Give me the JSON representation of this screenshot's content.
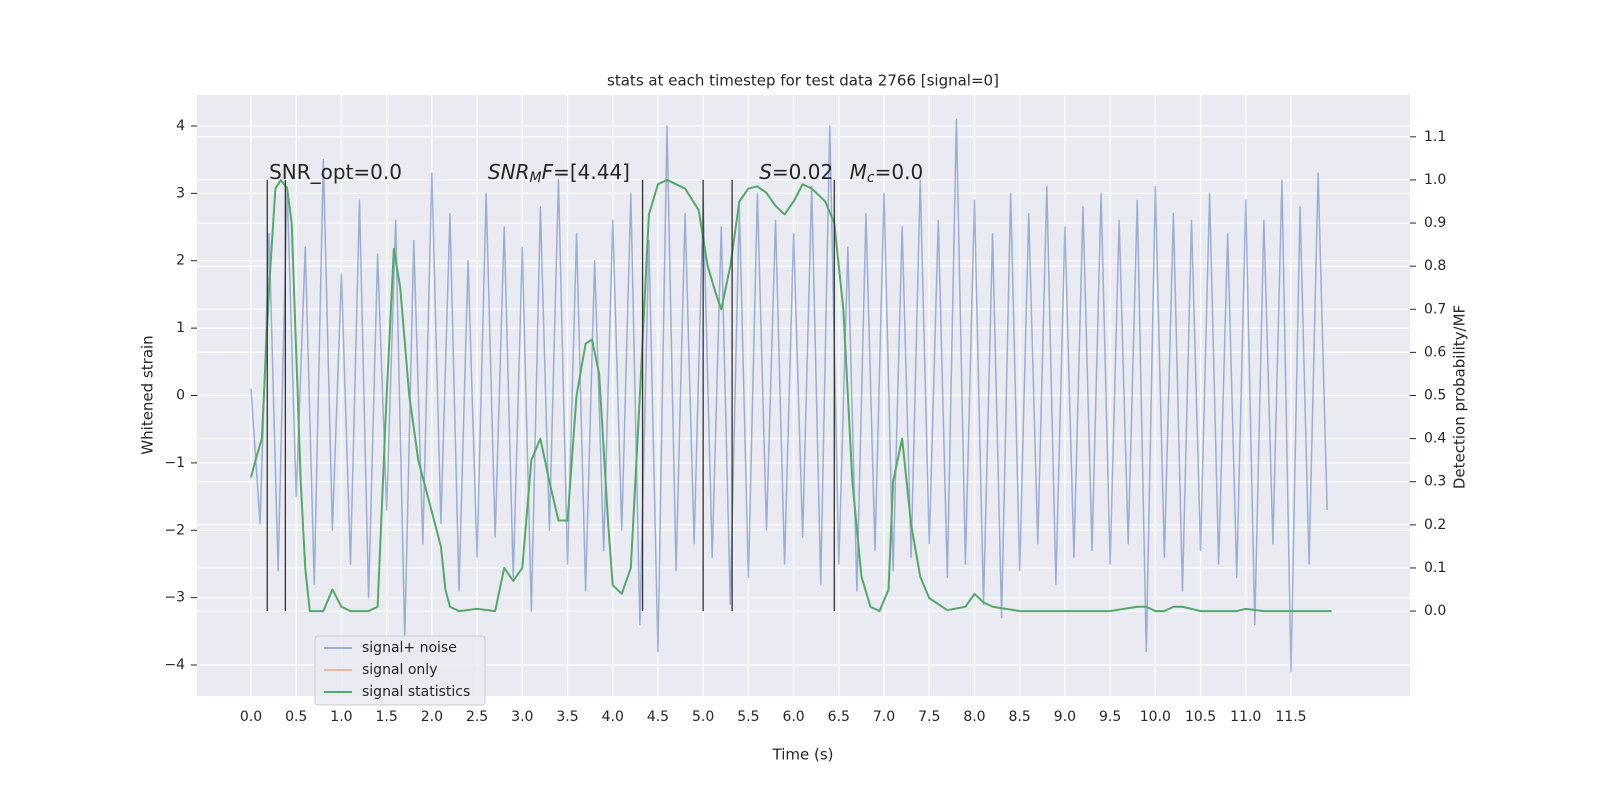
{
  "chart_data": {
    "type": "line",
    "title": "stats at each timestep for test data 2766 [signal=0]",
    "xlabel": "Time (s)",
    "ylabel": "Whitened strain",
    "y2label": "Detection probability/MF",
    "xlim": [
      -0.597,
      12.816
    ],
    "ylim": [
      -4.46,
      4.46
    ],
    "y2lim": [
      -0.197,
      1.197
    ],
    "grid": true,
    "legend": "lower left",
    "xticks": [
      {
        "value": 0,
        "label": "0.0"
      },
      0.5,
      {
        "value": 1,
        "label": "1.0"
      },
      1.5,
      {
        "value": 2,
        "label": "2.0"
      },
      2.5,
      {
        "value": 3,
        "label": "3.0"
      },
      3.5,
      {
        "value": 4,
        "label": "4.0"
      },
      4.5,
      {
        "value": 5,
        "label": "5.0"
      },
      5.5,
      {
        "value": 6,
        "label": "6.0"
      },
      6.5,
      {
        "value": 7,
        "label": "7.0"
      },
      7.5,
      {
        "value": 8,
        "label": "8.0"
      },
      8.5,
      {
        "value": 9,
        "label": "9.0"
      },
      9.5,
      {
        "value": 10,
        "label": "10.0"
      },
      10.5,
      {
        "value": 11,
        "label": "11.0"
      },
      11.5
    ],
    "yticks": [
      {
        "value": -4,
        "label": "−4"
      },
      {
        "value": -3,
        "label": "−3"
      },
      {
        "value": -2,
        "label": "−2"
      },
      {
        "value": -1,
        "label": "−1"
      },
      0,
      1,
      2,
      3,
      4
    ],
    "y2ticks": [
      {
        "value": 0,
        "label": "0.0"
      },
      0.1,
      0.2,
      0.3,
      0.4,
      0.5,
      0.6,
      0.7,
      0.8,
      0.9,
      {
        "value": 1,
        "label": "1.0"
      },
      1.1
    ],
    "series": [
      {
        "name": "signal+ noise",
        "color": "#4c72b0",
        "opacity": 0.5,
        "x": [
          0,
          0.1,
          0.2,
          0.3,
          0.4,
          0.5,
          0.6,
          0.7,
          0.8,
          0.9,
          1,
          1.1,
          1.2,
          1.3,
          1.4,
          1.5,
          1.6,
          1.7,
          1.8,
          1.9,
          2,
          2.1,
          2.2,
          2.3,
          2.4,
          2.5,
          2.6,
          2.7,
          2.8,
          2.9,
          3,
          3.1,
          3.2,
          3.3,
          3.4,
          3.5,
          3.6,
          3.7,
          3.8,
          3.9,
          4,
          4.1,
          4.2,
          4.3,
          4.4,
          4.5,
          4.6,
          4.7,
          4.8,
          4.9,
          5,
          5.1,
          5.2,
          5.3,
          5.4,
          5.5,
          5.6,
          5.7,
          5.8,
          5.9,
          6,
          6.1,
          6.2,
          6.3,
          6.4,
          6.5,
          6.6,
          6.7,
          6.8,
          6.9,
          7,
          7.1,
          7.2,
          7.3,
          7.4,
          7.5,
          7.6,
          7.7,
          7.8,
          7.9,
          8,
          8.1,
          8.2,
          8.3,
          8.4,
          8.5,
          8.6,
          8.7,
          8.8,
          8.9,
          9,
          9.1,
          9.2,
          9.3,
          9.4,
          9.5,
          9.6,
          9.7,
          9.8,
          9.9,
          10,
          10.1,
          10.2,
          10.3,
          10.4,
          10.5,
          10.6,
          10.7,
          10.8,
          10.9,
          11,
          11.1,
          11.2,
          11.3,
          11.4,
          11.5,
          11.6,
          11.7,
          11.8,
          11.9
        ],
        "values": [
          0.1,
          -1.9,
          2.4,
          -2.6,
          3.1,
          -1.5,
          2.2,
          -2.8,
          3.5,
          -2.0,
          1.8,
          -2.5,
          2.9,
          -3.0,
          2.1,
          -1.7,
          2.6,
          -3.6,
          2.3,
          -2.2,
          3.3,
          -1.9,
          2.7,
          -2.9,
          2.0,
          -2.4,
          3.0,
          -2.1,
          2.5,
          -2.7,
          2.2,
          -3.2,
          2.8,
          -2.0,
          3.2,
          -2.5,
          2.4,
          -2.9,
          2.0,
          -2.3,
          2.6,
          -2.0,
          3.0,
          -3.4,
          2.3,
          -3.8,
          4.0,
          -2.6,
          2.7,
          -2.2,
          2.9,
          -2.4,
          2.5,
          -3.1,
          2.8,
          -2.7,
          3.0,
          -2.0,
          2.6,
          -2.5,
          2.4,
          -2.1,
          3.1,
          -2.8,
          4.0,
          -2.5,
          2.2,
          -2.9,
          2.7,
          -2.3,
          3.0,
          -2.6,
          2.5,
          -2.4,
          3.2,
          -2.2,
          2.6,
          -2.7,
          4.1,
          -2.5,
          2.9,
          -3.1,
          2.4,
          -3.3,
          3.0,
          -2.6,
          2.7,
          -2.2,
          3.1,
          -2.8,
          2.5,
          -2.4,
          2.8,
          -2.3,
          3.0,
          -2.5,
          2.6,
          -2.2,
          2.9,
          -3.8,
          3.1,
          -2.4,
          2.7,
          -2.9,
          2.6,
          -2.3,
          3.0,
          -2.5,
          2.4,
          -2.7,
          2.9,
          -3.4,
          2.6,
          -2.2,
          3.2,
          -4.1,
          2.8,
          -2.5,
          3.3,
          -1.7
        ]
      },
      {
        "name": "signal only",
        "color": "#dd8452",
        "opacity": 0.5,
        "x": [],
        "values": []
      },
      {
        "name": "signal statistics",
        "color": "#55a868",
        "opacity": 1,
        "axis": "y2",
        "x": [
          0,
          0.05,
          0.12,
          0.2,
          0.27,
          0.33,
          0.4,
          0.45,
          0.5,
          0.55,
          0.6,
          0.65,
          0.8,
          0.9,
          1,
          1.1,
          1.3,
          1.4,
          1.5,
          1.58,
          1.65,
          1.75,
          1.85,
          2,
          2.1,
          2.15,
          2.2,
          2.3,
          2.5,
          2.7,
          2.8,
          2.9,
          3,
          3.1,
          3.2,
          3.3,
          3.4,
          3.5,
          3.6,
          3.7,
          3.77,
          3.85,
          3.95,
          4,
          4.1,
          4.2,
          4.3,
          4.4,
          4.5,
          4.6,
          4.8,
          4.95,
          5.05,
          5.15,
          5.2,
          5.3,
          5.4,
          5.5,
          5.6,
          5.7,
          5.8,
          5.9,
          6,
          6.1,
          6.2,
          6.35,
          6.45,
          6.55,
          6.65,
          6.75,
          6.85,
          6.95,
          7.05,
          7.1,
          7.2,
          7.3,
          7.4,
          7.5,
          7.7,
          7.9,
          8,
          8.1,
          8.2,
          8.5,
          9,
          9.5,
          9.8,
          9.9,
          10,
          10.1,
          10.2,
          10.3,
          10.5,
          10.9,
          11,
          11.2,
          11.5,
          11.95
        ],
        "values": [
          0.31,
          0.35,
          0.4,
          0.75,
          0.98,
          1.0,
          0.98,
          0.9,
          0.6,
          0.3,
          0.1,
          0.0,
          0.0,
          0.05,
          0.01,
          0.0,
          0.0,
          0.01,
          0.5,
          0.84,
          0.75,
          0.5,
          0.35,
          0.23,
          0.15,
          0.05,
          0.01,
          0.0,
          0.005,
          0.0,
          0.1,
          0.07,
          0.1,
          0.35,
          0.4,
          0.3,
          0.21,
          0.21,
          0.5,
          0.62,
          0.63,
          0.55,
          0.2,
          0.06,
          0.04,
          0.1,
          0.5,
          0.92,
          0.99,
          1.0,
          0.98,
          0.93,
          0.8,
          0.73,
          0.7,
          0.8,
          0.95,
          0.98,
          0.985,
          0.97,
          0.94,
          0.92,
          0.95,
          0.99,
          0.98,
          0.95,
          0.9,
          0.7,
          0.3,
          0.08,
          0.01,
          0.0,
          0.05,
          0.3,
          0.4,
          0.2,
          0.08,
          0.03,
          0.002,
          0.01,
          0.04,
          0.02,
          0.01,
          0.0,
          0.0,
          0.0,
          0.01,
          0.01,
          0.0,
          0.0,
          0.01,
          0.01,
          0.0,
          0.0,
          0.005,
          0.0,
          0.0,
          0.0
        ]
      }
    ],
    "markers": {
      "x": [
        0.18,
        0.38,
        4.33,
        5.0,
        5.32,
        6.45
      ],
      "ymin": -3.2,
      "ymax": 3.2,
      "color": "#333333"
    },
    "annotations": [
      {
        "x": 0.2,
        "y": 3.3,
        "parts": [
          {
            "text": "SNR_opt=0.0"
          }
        ]
      },
      {
        "x": 2.62,
        "y": 3.3,
        "parts": [
          {
            "text": "SNR",
            "italic": true
          },
          {
            "text": "M",
            "italic": true,
            "sub": true
          },
          {
            "text": "F",
            "italic": true
          },
          {
            "text": "=[4.44]"
          }
        ]
      },
      {
        "x": 5.62,
        "y": 3.3,
        "parts": [
          {
            "text": "S",
            "italic": true
          },
          {
            "text": "=0.02"
          }
        ]
      },
      {
        "x": 6.62,
        "y": 3.3,
        "parts": [
          {
            "text": "M",
            "italic": true
          },
          {
            "text": "c",
            "italic": true,
            "sub": true
          },
          {
            "text": "=0.0"
          }
        ]
      }
    ]
  }
}
